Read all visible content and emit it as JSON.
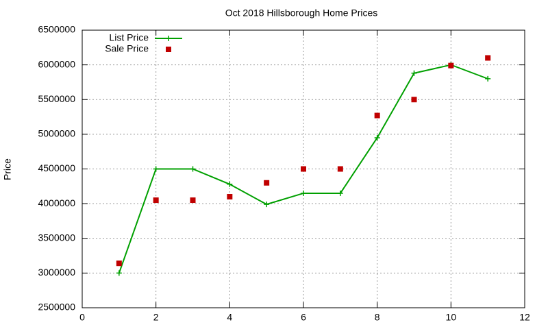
{
  "chart_data": {
    "type": "line",
    "title": "Oct 2018 Hillsborough Home Prices",
    "y_label": "Price",
    "x": [
      1,
      2,
      3,
      4,
      5,
      6,
      7,
      8,
      9,
      10,
      11
    ],
    "series": [
      {
        "name": "List Price",
        "color": "#00a000",
        "style": "linespoints",
        "values": [
          3000000,
          4500000,
          4500000,
          4280000,
          3990000,
          4150000,
          4150000,
          4950000,
          5880000,
          6000000,
          5800000
        ]
      },
      {
        "name": "Sale Price",
        "color": "#c00000",
        "style": "points",
        "values": [
          3140000,
          4050000,
          4050000,
          4100000,
          4300000,
          4500000,
          4500000,
          5270000,
          5500000,
          5990000,
          6100000
        ]
      }
    ],
    "xlim": [
      0,
      12
    ],
    "xticks": [
      0,
      2,
      4,
      6,
      8,
      10,
      12
    ],
    "ylim": [
      2500000,
      6500000
    ],
    "yticks": [
      2500000,
      3000000,
      3500000,
      4000000,
      4500000,
      5000000,
      5500000,
      6000000,
      6500000
    ],
    "grid": true,
    "legend": "top-left"
  }
}
